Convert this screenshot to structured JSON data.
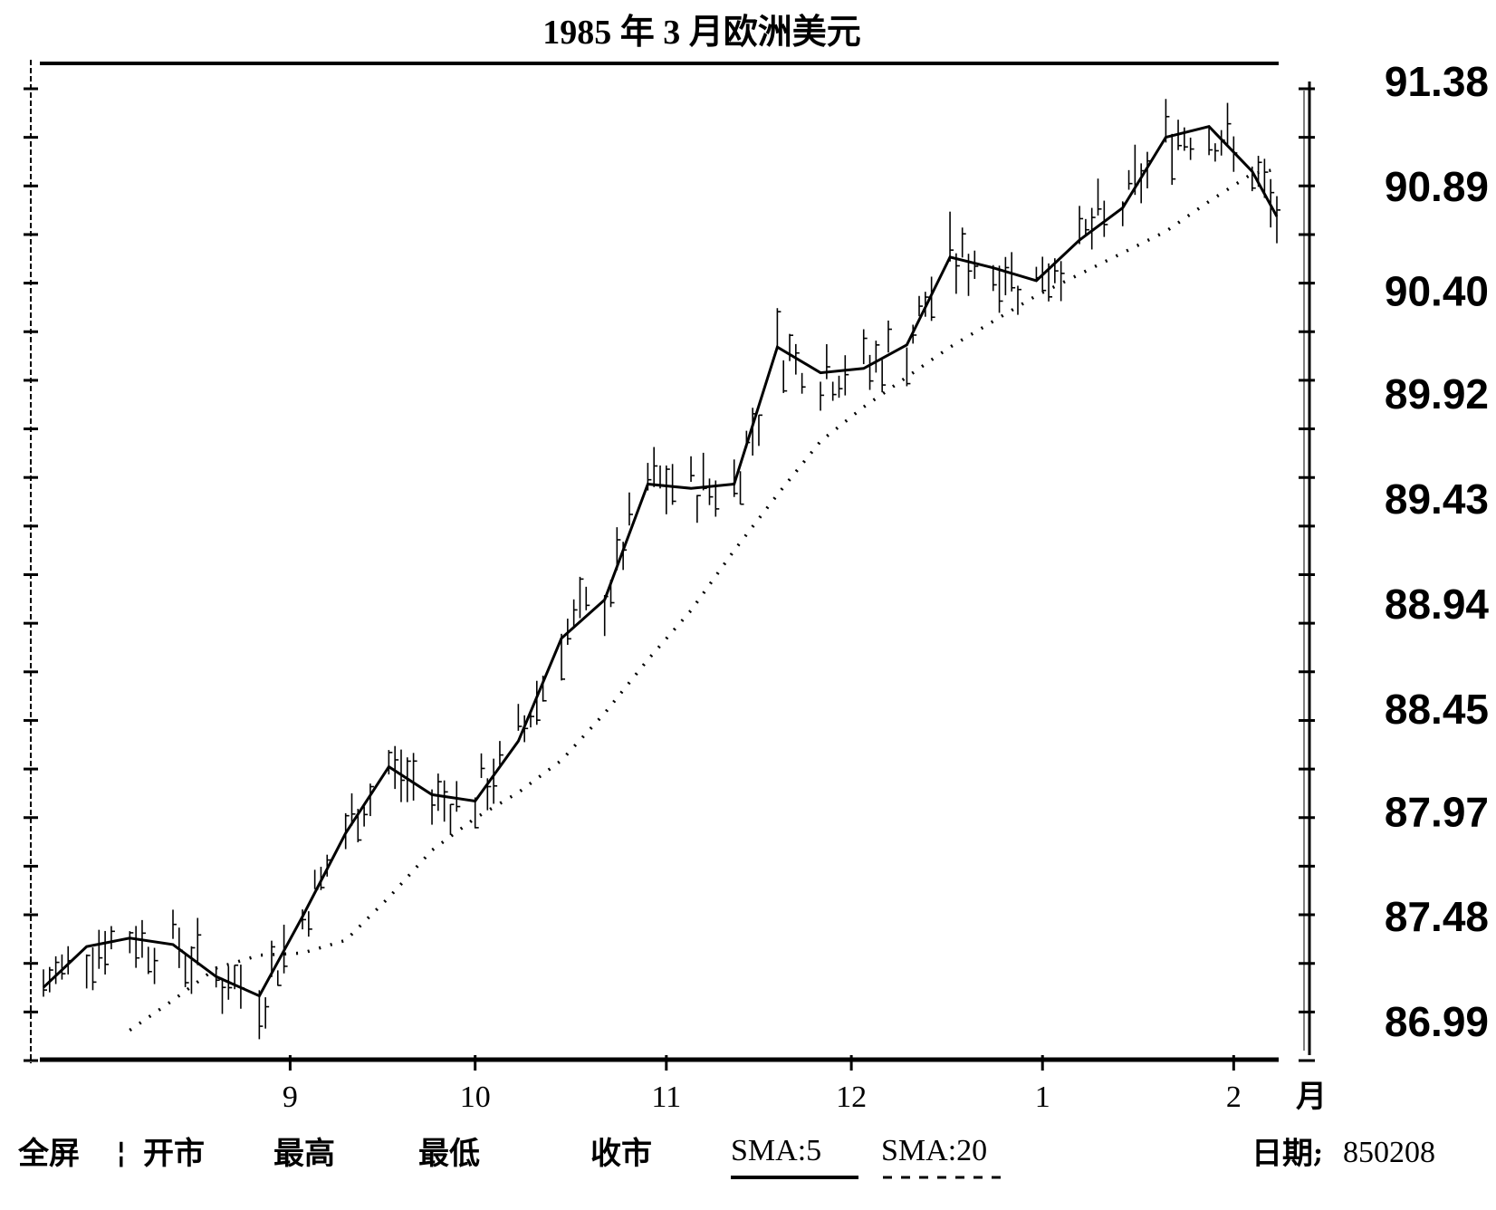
{
  "chart_data": {
    "type": "line",
    "title": "1985 年 3 月欧洲美元",
    "y_ticks": [
      "91.38",
      "90.89",
      "90.40",
      "89.92",
      "89.43",
      "88.94",
      "88.45",
      "87.97",
      "87.48",
      "86.99"
    ],
    "y_tick_values": [
      91.38,
      90.89,
      90.4,
      89.92,
      89.43,
      88.94,
      88.45,
      87.97,
      87.48,
      86.99
    ],
    "ylim": [
      86.99,
      91.38
    ],
    "x_ticks": [
      "9",
      "10",
      "11",
      "12",
      "1",
      "2"
    ],
    "x_tick_dates": [
      "1984-09-01",
      "1984-10-01",
      "1984-11-01",
      "1984-12-01",
      "1985-01-01",
      "1985-02-01"
    ],
    "xlim": [
      "1984-07-23",
      "1985-02-08"
    ],
    "x_unit": "月",
    "grid": false,
    "x": [
      "1984-07-23",
      "1984-07-30",
      "1984-08-06",
      "1984-08-13",
      "1984-08-20",
      "1984-08-27",
      "1984-09-03",
      "1984-09-10",
      "1984-09-17",
      "1984-09-24",
      "1984-10-01",
      "1984-10-08",
      "1984-10-15",
      "1984-10-22",
      "1984-10-29",
      "1984-11-05",
      "1984-11-12",
      "1984-11-19",
      "1984-11-26",
      "1984-12-03",
      "1984-12-10",
      "1984-12-17",
      "1984-12-24",
      "1984-12-31",
      "1985-01-07",
      "1985-01-14",
      "1985-01-21",
      "1985-01-28",
      "1985-02-04",
      "1985-02-08"
    ],
    "series": [
      {
        "name": "SMA:5",
        "style": "solid",
        "values": [
          87.15,
          87.34,
          87.38,
          87.35,
          87.2,
          87.11,
          87.48,
          87.87,
          88.18,
          88.05,
          88.02,
          88.3,
          88.78,
          88.96,
          89.5,
          89.48,
          89.5,
          90.14,
          90.02,
          90.04,
          90.15,
          90.56,
          90.51,
          90.45,
          90.64,
          90.79,
          91.12,
          91.17,
          90.96,
          90.75
        ]
      },
      {
        "name": "SMA:20",
        "style": "dashed",
        "values": [
          null,
          null,
          86.95,
          87.09,
          87.24,
          87.3,
          87.31,
          87.37,
          87.57,
          87.79,
          87.94,
          88.06,
          88.21,
          88.43,
          88.68,
          88.91,
          89.19,
          89.45,
          89.7,
          89.86,
          90.0,
          90.14,
          90.26,
          90.38,
          90.48,
          90.58,
          90.68,
          90.82,
          90.95,
          90.97
        ]
      }
    ]
  },
  "bottom_bar": {
    "fullscreen": "全屏",
    "separator": "¦",
    "open": "开市",
    "high": "最高",
    "low": "最低",
    "close": "收市",
    "sma5_label": "SMA:5",
    "sma20_label": "SMA:20",
    "date_label": "日期",
    "date_value": "850208"
  }
}
